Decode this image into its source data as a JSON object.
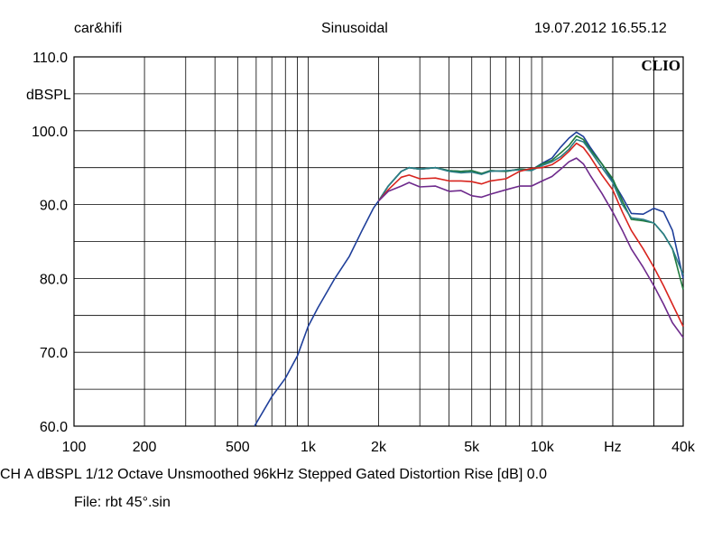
{
  "header": {
    "left": "car&hifi",
    "center": "Sinusoidal",
    "right": "19.07.2012 16.55.12"
  },
  "brand": "CLIO",
  "footer": {
    "info": "CH A   dBSPL    1/12 Octave   Unsmoothed   96kHz   Stepped    Gated    Distortion Rise [dB] 0.0",
    "file": "File: rbt 45°.sin"
  },
  "colors": {
    "blue": "#1f3f9a",
    "green": "#1f7a3c",
    "teal": "#2a7d86",
    "red": "#d8241e",
    "purple": "#6e2a8c"
  },
  "chart_data": {
    "type": "line",
    "xscale": "log",
    "xlim": [
      100,
      40000
    ],
    "ylim": [
      60,
      110
    ],
    "ylabel": "dBSPL",
    "grid": true,
    "yticks": [
      {
        "value": 110,
        "label": "110.0"
      },
      {
        "value": 100,
        "label": "100.0"
      },
      {
        "value": 90,
        "label": "90.0"
      },
      {
        "value": 80,
        "label": "80.0"
      },
      {
        "value": 70,
        "label": "70.0"
      },
      {
        "value": 60,
        "label": "60.0"
      }
    ],
    "xticks": [
      {
        "value": 100,
        "label": "100"
      },
      {
        "value": 200,
        "label": "200"
      },
      {
        "value": 500,
        "label": "500"
      },
      {
        "value": 1000,
        "label": "1k"
      },
      {
        "value": 2000,
        "label": "2k"
      },
      {
        "value": 5000,
        "label": "5k"
      },
      {
        "value": 10000,
        "label": "10k"
      },
      {
        "value": 20000,
        "label": "Hz"
      },
      {
        "value": 40000,
        "label": "40k"
      }
    ],
    "series": [
      {
        "color": "#1f3f9a",
        "points": [
          [
            590,
            60
          ],
          [
            700,
            64
          ],
          [
            800,
            66.5
          ],
          [
            900,
            69.5
          ],
          [
            1000,
            73.5
          ],
          [
            1100,
            76
          ],
          [
            1300,
            80
          ],
          [
            1500,
            83
          ],
          [
            1700,
            86.5
          ],
          [
            1900,
            89.5
          ],
          [
            2000,
            90.5
          ],
          [
            2200,
            92.5
          ],
          [
            2500,
            94.5
          ],
          [
            2700,
            95
          ],
          [
            3000,
            94.8
          ],
          [
            3500,
            95
          ],
          [
            4000,
            94.6
          ],
          [
            4500,
            94.5
          ],
          [
            5000,
            94.6
          ],
          [
            5500,
            94.2
          ],
          [
            6000,
            94.6
          ],
          [
            7000,
            94.5
          ],
          [
            8000,
            94.8
          ],
          [
            9000,
            94.7
          ],
          [
            10000,
            95.6
          ],
          [
            11000,
            96.3
          ],
          [
            12000,
            97.8
          ],
          [
            13000,
            99
          ],
          [
            14000,
            99.8
          ],
          [
            15000,
            99.2
          ],
          [
            16000,
            97.8
          ],
          [
            18000,
            95.5
          ],
          [
            20000,
            93.2
          ],
          [
            22000,
            91
          ],
          [
            24000,
            88.8
          ],
          [
            27000,
            88.7
          ],
          [
            30000,
            89.5
          ],
          [
            33000,
            89
          ],
          [
            36000,
            86.5
          ],
          [
            40000,
            80
          ]
        ]
      },
      {
        "color": "#1f7a3c",
        "points": [
          [
            2000,
            90.5
          ],
          [
            2200,
            92.5
          ],
          [
            2500,
            94.5
          ],
          [
            2700,
            95
          ],
          [
            3000,
            94.8
          ],
          [
            3500,
            95
          ],
          [
            4000,
            94.6
          ],
          [
            4500,
            94.5
          ],
          [
            5000,
            94.6
          ],
          [
            5500,
            94.2
          ],
          [
            6000,
            94.6
          ],
          [
            7000,
            94.5
          ],
          [
            8000,
            94.8
          ],
          [
            9000,
            94.7
          ],
          [
            10000,
            95.5
          ],
          [
            11000,
            96
          ],
          [
            12000,
            97
          ],
          [
            13000,
            98
          ],
          [
            14000,
            99.3
          ],
          [
            15000,
            98.8
          ],
          [
            16000,
            97.5
          ],
          [
            18000,
            95.5
          ],
          [
            20000,
            93.5
          ],
          [
            22000,
            90.5
          ],
          [
            24000,
            88
          ],
          [
            27000,
            87.8
          ],
          [
            30000,
            87.5
          ],
          [
            33000,
            86
          ],
          [
            36000,
            84
          ],
          [
            40000,
            78.5
          ]
        ]
      },
      {
        "color": "#2a7d86",
        "points": [
          [
            2000,
            90.5
          ],
          [
            2200,
            92.5
          ],
          [
            2500,
            94.5
          ],
          [
            2700,
            95
          ],
          [
            3000,
            94.8
          ],
          [
            3500,
            95
          ],
          [
            4000,
            94.5
          ],
          [
            4500,
            94.3
          ],
          [
            5000,
            94.4
          ],
          [
            5500,
            94.1
          ],
          [
            6000,
            94.5
          ],
          [
            7000,
            94.6
          ],
          [
            8000,
            94.7
          ],
          [
            9000,
            94.6
          ],
          [
            10000,
            95.3
          ],
          [
            11000,
            95.8
          ],
          [
            12000,
            96.5
          ],
          [
            13000,
            97.5
          ],
          [
            14000,
            98.8
          ],
          [
            15000,
            98.5
          ],
          [
            16000,
            97.3
          ],
          [
            18000,
            95
          ],
          [
            20000,
            93
          ],
          [
            22000,
            90
          ],
          [
            24000,
            88.2
          ],
          [
            27000,
            88
          ],
          [
            30000,
            87.5
          ],
          [
            33000,
            86
          ],
          [
            36000,
            84
          ],
          [
            40000,
            80.5
          ]
        ]
      },
      {
        "color": "#d8241e",
        "points": [
          [
            2000,
            90.5
          ],
          [
            2200,
            92
          ],
          [
            2500,
            93.7
          ],
          [
            2700,
            94
          ],
          [
            3000,
            93.5
          ],
          [
            3500,
            93.6
          ],
          [
            4000,
            93.2
          ],
          [
            4500,
            93.2
          ],
          [
            5000,
            93.1
          ],
          [
            5500,
            92.8
          ],
          [
            6000,
            93.2
          ],
          [
            7000,
            93.5
          ],
          [
            8000,
            94.5
          ],
          [
            9000,
            94.9
          ],
          [
            10000,
            95
          ],
          [
            11000,
            95.4
          ],
          [
            12000,
            96.2
          ],
          [
            13000,
            97.2
          ],
          [
            14000,
            98.3
          ],
          [
            15000,
            97.7
          ],
          [
            16000,
            96.5
          ],
          [
            18000,
            94
          ],
          [
            20000,
            92
          ],
          [
            22000,
            89
          ],
          [
            24000,
            86.5
          ],
          [
            27000,
            84
          ],
          [
            30000,
            81.5
          ],
          [
            33000,
            79
          ],
          [
            36000,
            76.5
          ],
          [
            40000,
            73.5
          ]
        ]
      },
      {
        "color": "#6e2a8c",
        "points": [
          [
            2000,
            90.5
          ],
          [
            2200,
            91.8
          ],
          [
            2500,
            92.5
          ],
          [
            2700,
            93
          ],
          [
            3000,
            92.4
          ],
          [
            3500,
            92.5
          ],
          [
            4000,
            91.8
          ],
          [
            4500,
            91.9
          ],
          [
            5000,
            91.2
          ],
          [
            5500,
            91
          ],
          [
            6000,
            91.4
          ],
          [
            7000,
            92
          ],
          [
            8000,
            92.5
          ],
          [
            9000,
            92.5
          ],
          [
            10000,
            93.2
          ],
          [
            11000,
            93.8
          ],
          [
            12000,
            94.8
          ],
          [
            13000,
            95.8
          ],
          [
            14000,
            96.3
          ],
          [
            15000,
            95.5
          ],
          [
            16000,
            94
          ],
          [
            18000,
            91.5
          ],
          [
            20000,
            89
          ],
          [
            22000,
            86.5
          ],
          [
            24000,
            84
          ],
          [
            27000,
            81.5
          ],
          [
            30000,
            79
          ],
          [
            33000,
            76.5
          ],
          [
            36000,
            74
          ],
          [
            40000,
            72
          ]
        ]
      }
    ]
  }
}
